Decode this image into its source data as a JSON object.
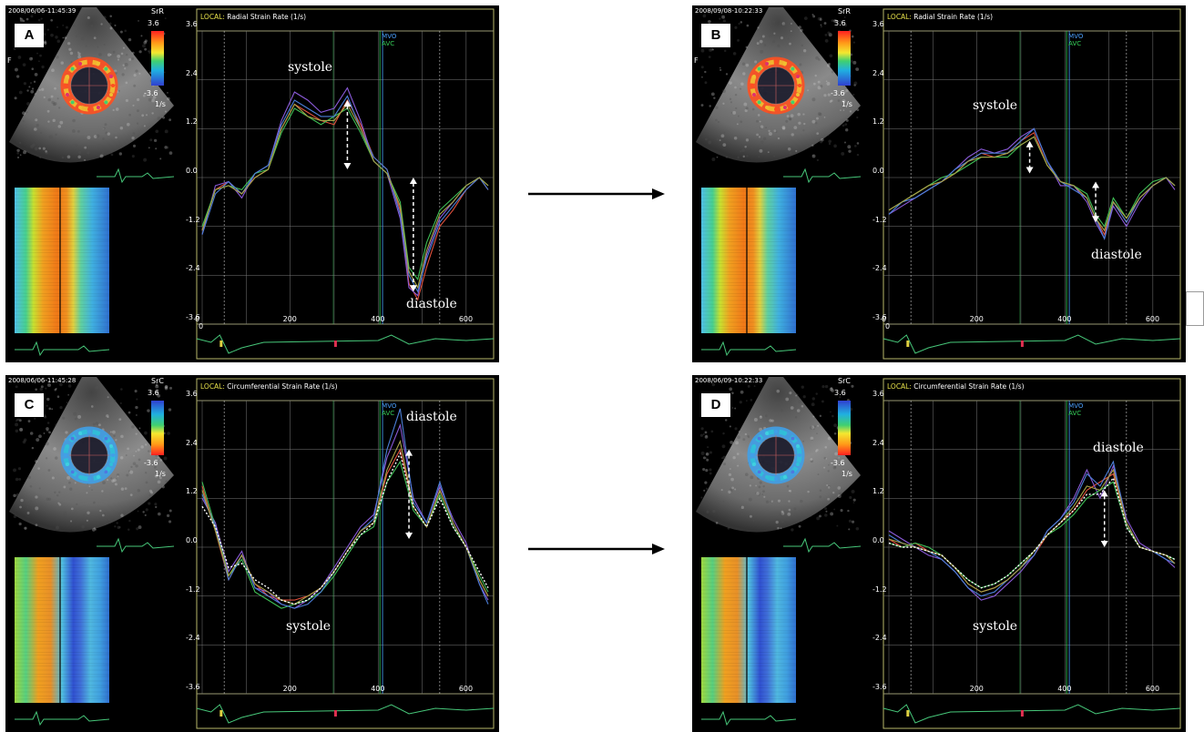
{
  "figure": {
    "panels": [
      {
        "label": "A",
        "timestamp": "2008/06/06-11:45:39",
        "mode": "SrR",
        "scale_top": "3.6",
        "scale_bottom": "-3.6",
        "scale_unit": "1/s",
        "side_letter": "F",
        "title_prefix": "LOCAL:",
        "title": "Radial Strain Rate  (1/s)",
        "event_mvo": "MVO",
        "event_avc": "AVC",
        "annotation_top": "systole",
        "annotation_bottom": "diastole",
        "colormap": "radial"
      },
      {
        "label": "B",
        "timestamp": "2008/09/08-10:22:33",
        "mode": "SrR",
        "scale_top": "3.6",
        "scale_bottom": "-3.6",
        "scale_unit": "1/s",
        "side_letter": "F",
        "title_prefix": "LOCAL:",
        "title": "Radial Strain Rate  (1/s)",
        "event_mvo": "MVO",
        "event_avc": "AVC",
        "annotation_top": "systole",
        "annotation_bottom": "diastole",
        "colormap": "radial"
      },
      {
        "label": "C",
        "timestamp": "2008/06/06-11:45:28",
        "mode": "SrC",
        "scale_top": "3.6",
        "scale_bottom": "-3.6",
        "scale_unit": "1/s",
        "side_letter": "",
        "title_prefix": "LOCAL:",
        "title": "Circumferential Strain Rate  (1/s)",
        "event_mvo": "MVO",
        "event_avc": "AVC",
        "annotation_top": "diastole",
        "annotation_bottom": "systole",
        "colormap": "circ"
      },
      {
        "label": "D",
        "timestamp": "2008/06/09-10:22:33",
        "mode": "SrC",
        "scale_top": "3.6",
        "scale_bottom": "-3.6",
        "scale_unit": "1/s",
        "side_letter": "",
        "title_prefix": "LOCAL:",
        "title": "Circumferential Strain Rate  (1/s)",
        "event_mvo": "MVO",
        "event_avc": "AVC",
        "annotation_top": "diastole",
        "annotation_bottom": "systole",
        "colormap": "circ"
      }
    ],
    "colors": {
      "trace_red": "#e0503c",
      "trace_purple": "#8a5ad8",
      "trace_green": "#3fbf55",
      "trace_blue": "#4c7fd8",
      "trace_olive": "#a8a448",
      "trace_white": "#ffffff",
      "frame": "#b7b76a",
      "grid": "#7a7a7a",
      "mvo": "#4aa0ff",
      "avc": "#36d05a",
      "ecg": "#47c87a"
    }
  },
  "chart_data": [
    {
      "type": "line",
      "panel": "A",
      "title": "Radial Strain Rate  (1/s)",
      "xlim": [
        0,
        650
      ],
      "ylim": [
        -3.6,
        3.6
      ],
      "xticks": [
        0,
        200,
        400,
        600
      ],
      "yticks": [
        3.6,
        2.4,
        1.2,
        0.0,
        -1.2,
        -2.4,
        -3.6
      ],
      "x": [
        0,
        30,
        60,
        90,
        120,
        150,
        180,
        210,
        240,
        270,
        300,
        330,
        360,
        390,
        420,
        450,
        470,
        490,
        510,
        540,
        570,
        600,
        630,
        650
      ],
      "series": [
        {
          "color": "red",
          "values": [
            -1.3,
            -0.3,
            -0.1,
            -0.4,
            0.0,
            0.2,
            1.2,
            1.8,
            1.6,
            1.4,
            1.3,
            1.9,
            1.3,
            0.5,
            0.2,
            -0.8,
            -2.6,
            -3.0,
            -2.2,
            -1.2,
            -0.8,
            -0.3,
            0.0,
            -0.3
          ]
        },
        {
          "color": "purple",
          "values": [
            -1.4,
            -0.2,
            -0.1,
            -0.5,
            0.1,
            0.3,
            1.4,
            2.1,
            1.9,
            1.6,
            1.7,
            2.2,
            1.4,
            0.4,
            0.1,
            -1.0,
            -2.7,
            -2.9,
            -1.9,
            -1.0,
            -0.6,
            -0.2,
            0.0,
            -0.2
          ]
        },
        {
          "color": "green",
          "values": [
            -1.2,
            -0.3,
            -0.2,
            -0.3,
            0.1,
            0.2,
            1.1,
            1.7,
            1.5,
            1.3,
            1.5,
            1.7,
            1.1,
            0.4,
            0.1,
            -0.6,
            -2.2,
            -2.5,
            -1.6,
            -0.8,
            -0.5,
            -0.2,
            0.0,
            -0.2
          ]
        },
        {
          "color": "blue",
          "values": [
            -1.4,
            -0.4,
            -0.1,
            -0.4,
            0.1,
            0.3,
            1.3,
            1.9,
            1.7,
            1.5,
            1.5,
            2.0,
            1.2,
            0.5,
            0.2,
            -0.9,
            -2.4,
            -2.8,
            -2.0,
            -1.1,
            -0.7,
            -0.3,
            0.0,
            -0.3
          ]
        },
        {
          "color": "olive",
          "values": [
            -1.3,
            -0.3,
            -0.2,
            -0.4,
            0.0,
            0.2,
            1.2,
            1.8,
            1.5,
            1.4,
            1.4,
            1.8,
            1.2,
            0.4,
            0.1,
            -0.7,
            -2.3,
            -2.7,
            -1.8,
            -0.9,
            -0.6,
            -0.2,
            0.0,
            -0.2
          ]
        }
      ],
      "peak_arrows": [
        {
          "x": 330,
          "from": 1.9,
          "to": 0.2
        },
        {
          "x": 480,
          "from": 0.0,
          "to": -2.8
        }
      ]
    },
    {
      "type": "line",
      "panel": "B",
      "title": "Radial Strain Rate  (1/s)",
      "xlim": [
        0,
        650
      ],
      "ylim": [
        -3.6,
        3.6
      ],
      "xticks": [
        0,
        200,
        400,
        600
      ],
      "yticks": [
        3.6,
        2.4,
        1.2,
        0.0,
        -1.2,
        -2.4,
        -3.6
      ],
      "x": [
        0,
        30,
        60,
        90,
        120,
        150,
        180,
        210,
        240,
        270,
        300,
        330,
        360,
        390,
        420,
        450,
        470,
        490,
        510,
        540,
        570,
        600,
        630,
        650
      ],
      "series": [
        {
          "color": "red",
          "values": [
            -0.8,
            -0.6,
            -0.4,
            -0.2,
            -0.1,
            0.1,
            0.4,
            0.6,
            0.5,
            0.6,
            0.9,
            1.1,
            0.3,
            -0.1,
            -0.2,
            -0.5,
            -1.0,
            -1.4,
            -0.6,
            -1.1,
            -0.5,
            -0.2,
            0.0,
            -0.2
          ]
        },
        {
          "color": "purple",
          "values": [
            -0.9,
            -0.7,
            -0.5,
            -0.3,
            -0.1,
            0.2,
            0.5,
            0.7,
            0.6,
            0.7,
            1.0,
            1.2,
            0.4,
            -0.2,
            -0.2,
            -0.6,
            -1.1,
            -1.5,
            -0.7,
            -1.2,
            -0.6,
            -0.2,
            0.0,
            -0.3
          ]
        },
        {
          "color": "green",
          "values": [
            -0.8,
            -0.6,
            -0.4,
            -0.2,
            0.0,
            0.1,
            0.3,
            0.5,
            0.5,
            0.5,
            0.8,
            1.0,
            0.3,
            -0.1,
            -0.2,
            -0.4,
            -0.9,
            -1.2,
            -0.5,
            -1.0,
            -0.4,
            -0.1,
            0.0,
            -0.2
          ]
        },
        {
          "color": "blue",
          "values": [
            -0.9,
            -0.6,
            -0.5,
            -0.3,
            -0.1,
            0.2,
            0.4,
            0.6,
            0.6,
            0.6,
            0.9,
            1.2,
            0.4,
            -0.1,
            -0.3,
            -0.5,
            -1.0,
            -1.5,
            -0.6,
            -1.1,
            -0.5,
            -0.2,
            0.0,
            -0.2
          ]
        },
        {
          "color": "olive",
          "values": [
            -0.8,
            -0.6,
            -0.4,
            -0.2,
            -0.1,
            0.1,
            0.4,
            0.5,
            0.5,
            0.6,
            0.8,
            1.0,
            0.3,
            -0.1,
            -0.2,
            -0.5,
            -1.0,
            -1.3,
            -0.6,
            -1.0,
            -0.5,
            -0.2,
            0.0,
            -0.2
          ]
        }
      ],
      "peak_arrows": [
        {
          "x": 320,
          "from": 0.9,
          "to": 0.1
        },
        {
          "x": 470,
          "from": -0.1,
          "to": -1.1
        }
      ]
    },
    {
      "type": "line",
      "panel": "C",
      "title": "Circumferential Strain Rate  (1/s)",
      "xlim": [
        0,
        650
      ],
      "ylim": [
        -3.6,
        3.6
      ],
      "xticks": [
        200,
        400,
        600
      ],
      "yticks": [
        3.6,
        2.4,
        1.2,
        0.0,
        -1.2,
        -2.4,
        -3.6
      ],
      "x": [
        0,
        30,
        60,
        90,
        120,
        150,
        180,
        210,
        240,
        270,
        300,
        330,
        360,
        390,
        420,
        450,
        480,
        510,
        540,
        570,
        600,
        630,
        650
      ],
      "series": [
        {
          "color": "red",
          "values": [
            1.5,
            0.4,
            -0.8,
            -0.2,
            -0.9,
            -1.2,
            -1.3,
            -1.3,
            -1.2,
            -1.0,
            -0.6,
            -0.1,
            0.4,
            0.6,
            1.8,
            2.4,
            1.0,
            0.5,
            1.4,
            0.6,
            0.0,
            -0.8,
            -1.2
          ]
        },
        {
          "color": "purple",
          "values": [
            1.2,
            0.6,
            -0.6,
            -0.1,
            -1.0,
            -1.1,
            -1.4,
            -1.5,
            -1.3,
            -1.0,
            -0.5,
            0.0,
            0.5,
            0.8,
            2.2,
            3.0,
            1.2,
            0.6,
            1.5,
            0.7,
            0.1,
            -0.9,
            -1.3
          ]
        },
        {
          "color": "green",
          "values": [
            1.6,
            0.5,
            -0.7,
            -0.3,
            -1.1,
            -1.3,
            -1.5,
            -1.4,
            -1.3,
            -1.1,
            -0.7,
            -0.2,
            0.3,
            0.5,
            1.6,
            2.1,
            0.9,
            0.5,
            1.3,
            0.5,
            0.0,
            -0.7,
            -1.1
          ]
        },
        {
          "color": "blue",
          "values": [
            1.3,
            0.5,
            -0.8,
            -0.2,
            -1.0,
            -1.2,
            -1.4,
            -1.5,
            -1.4,
            -1.1,
            -0.6,
            -0.1,
            0.4,
            0.7,
            2.4,
            3.4,
            1.1,
            0.6,
            1.6,
            0.6,
            0.0,
            -0.9,
            -1.4
          ]
        },
        {
          "color": "olive",
          "values": [
            1.4,
            0.4,
            -0.7,
            -0.2,
            -0.9,
            -1.1,
            -1.3,
            -1.4,
            -1.2,
            -1.0,
            -0.6,
            -0.1,
            0.4,
            0.6,
            1.9,
            2.6,
            1.0,
            0.5,
            1.4,
            0.6,
            0.0,
            -0.8,
            -1.2
          ]
        },
        {
          "color": "white",
          "dashed": true,
          "values": [
            1.0,
            0.5,
            -0.5,
            -0.4,
            -0.8,
            -1.0,
            -1.3,
            -1.4,
            -1.3,
            -1.0,
            -0.6,
            -0.1,
            0.3,
            0.6,
            1.6,
            2.3,
            1.0,
            0.5,
            1.2,
            0.5,
            0.0,
            -0.6,
            -1.0
          ]
        }
      ],
      "peak_arrows": [
        {
          "x": 470,
          "from": 2.4,
          "to": 0.2
        }
      ]
    },
    {
      "type": "line",
      "panel": "D",
      "title": "Circumferential Strain Rate  (1/s)",
      "xlim": [
        0,
        650
      ],
      "ylim": [
        -3.6,
        3.6
      ],
      "xticks": [
        200,
        400,
        600
      ],
      "yticks": [
        3.6,
        2.4,
        1.2,
        0.0,
        -1.2,
        -2.4,
        -3.6
      ],
      "x": [
        0,
        30,
        60,
        90,
        120,
        150,
        180,
        210,
        240,
        270,
        300,
        330,
        360,
        390,
        420,
        450,
        480,
        510,
        540,
        570,
        600,
        630,
        650
      ],
      "series": [
        {
          "color": "red",
          "values": [
            0.2,
            0.0,
            0.1,
            -0.1,
            -0.2,
            -0.5,
            -0.9,
            -1.1,
            -1.0,
            -0.8,
            -0.5,
            -0.2,
            0.3,
            0.6,
            0.9,
            1.4,
            1.6,
            1.8,
            0.6,
            0.0,
            -0.1,
            -0.2,
            -0.4
          ]
        },
        {
          "color": "purple",
          "values": [
            0.4,
            0.2,
            0.0,
            -0.2,
            -0.3,
            -0.6,
            -1.0,
            -1.3,
            -1.2,
            -0.9,
            -0.6,
            -0.2,
            0.4,
            0.7,
            1.2,
            1.9,
            1.2,
            2.0,
            0.7,
            0.1,
            -0.1,
            -0.3,
            -0.5
          ]
        },
        {
          "color": "green",
          "values": [
            0.1,
            0.0,
            0.1,
            0.0,
            -0.2,
            -0.5,
            -0.8,
            -1.0,
            -0.9,
            -0.7,
            -0.4,
            -0.1,
            0.3,
            0.5,
            0.8,
            1.2,
            1.4,
            1.6,
            0.5,
            0.0,
            -0.1,
            -0.2,
            -0.3
          ]
        },
        {
          "color": "blue",
          "values": [
            0.3,
            0.1,
            0.0,
            -0.1,
            -0.3,
            -0.6,
            -1.0,
            -1.2,
            -1.1,
            -0.8,
            -0.5,
            -0.2,
            0.4,
            0.7,
            1.1,
            1.8,
            1.5,
            2.1,
            0.6,
            0.0,
            -0.1,
            -0.3,
            -0.4
          ]
        },
        {
          "color": "olive",
          "values": [
            0.2,
            0.1,
            0.0,
            -0.1,
            -0.2,
            -0.5,
            -0.9,
            -1.1,
            -1.0,
            -0.8,
            -0.5,
            -0.1,
            0.3,
            0.6,
            1.0,
            1.5,
            1.4,
            1.9,
            0.6,
            0.0,
            -0.1,
            -0.2,
            -0.4
          ]
        },
        {
          "color": "white",
          "dashed": true,
          "values": [
            0.1,
            0.0,
            0.0,
            -0.1,
            -0.2,
            -0.5,
            -0.8,
            -1.0,
            -0.9,
            -0.7,
            -0.4,
            -0.1,
            0.3,
            0.6,
            0.9,
            1.3,
            1.3,
            1.7,
            0.5,
            0.0,
            -0.1,
            -0.2,
            -0.3
          ]
        }
      ],
      "peak_arrows": [
        {
          "x": 490,
          "from": 1.4,
          "to": 0.0
        }
      ]
    }
  ]
}
